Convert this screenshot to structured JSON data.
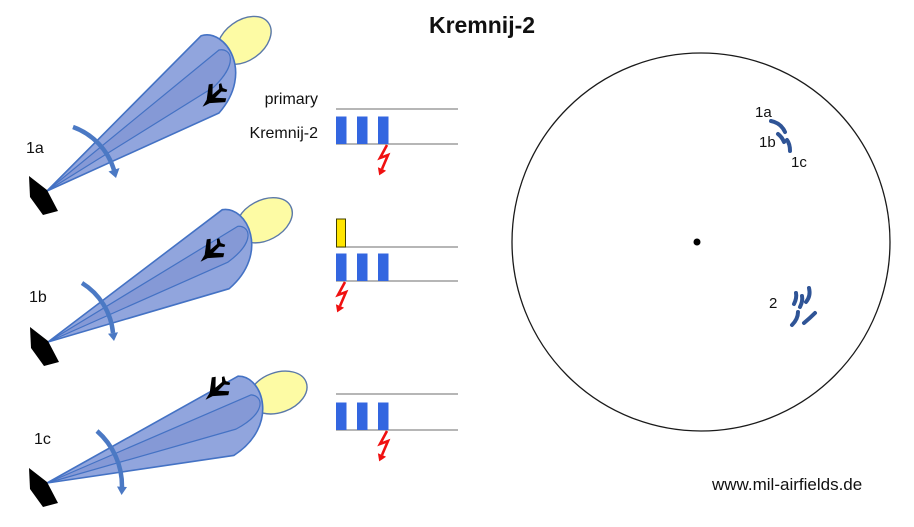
{
  "title": "Kremnij-2",
  "website": "www.mil-airfields.de",
  "beams": [
    {
      "label": "1a",
      "aircraft_position": "lower-edge-of-beam"
    },
    {
      "label": "1b",
      "aircraft_position": "center-of-beam"
    },
    {
      "label": "1c",
      "aircraft_position": "upper-edge-of-beam"
    }
  ],
  "timing": {
    "primary_label": "primary",
    "secondary_label": "Kremnij-2",
    "diagrams": [
      {
        "beam": "1a",
        "primary_pulses": 0,
        "response_pulses": 3,
        "bolt_after_pulse": 3
      },
      {
        "beam": "1b",
        "primary_pulses": 1,
        "response_pulses": 3,
        "bolt_after_pulse": 1
      },
      {
        "beam": "1c",
        "primary_pulses": 0,
        "response_pulses": 3,
        "bolt_after_pulse": 3
      }
    ]
  },
  "scope": {
    "labels": [
      {
        "text": "1a"
      },
      {
        "text": "1b"
      },
      {
        "text": "1c"
      },
      {
        "text": "2"
      }
    ]
  },
  "colors": {
    "beam_fill": "#91a5dd",
    "beam_inner_fill": "#8599d6",
    "beam_outline": "#4472c4",
    "echo_ellipse_fill": "#fdfba4",
    "echo_ellipse_outline": "#5b79a8",
    "rotation_arrow": "#4b79c4",
    "antenna": "#000000",
    "aircraft": "#000000",
    "primary_pulse": "#ffe500",
    "primary_pulse_outline": "#404000",
    "response_pulse": "#3366e0",
    "bolt_red": "#f01010",
    "timing_line": "#8a8a8a",
    "scope_outline": "#1a1a1a",
    "scope_blip": "#2f5496"
  }
}
